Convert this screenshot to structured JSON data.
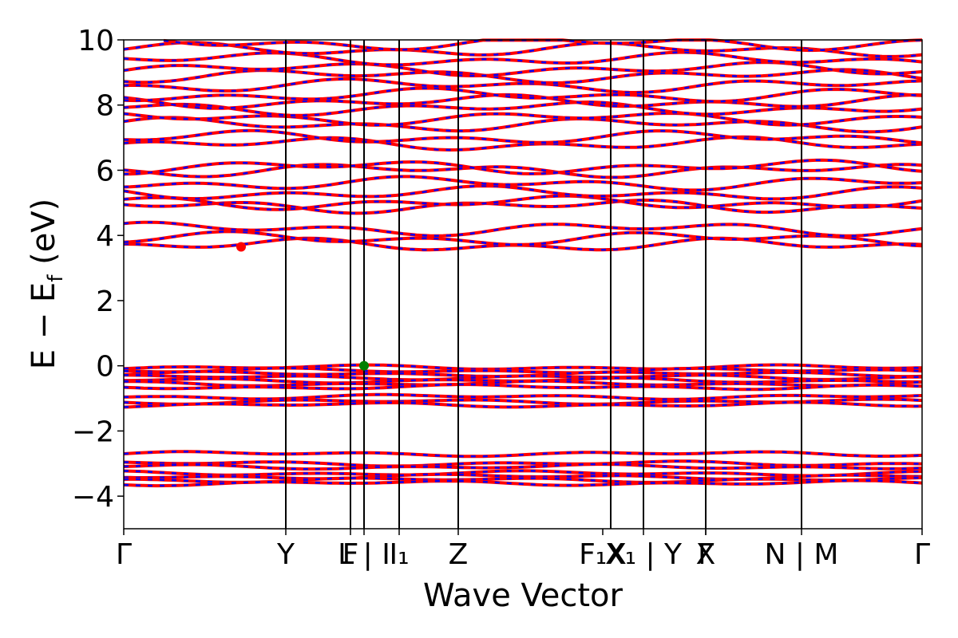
{
  "chart_data": {
    "type": "line",
    "xlabel": "Wave Vector",
    "ylabel": "E − E",
    "ylabel_sub": "f",
    "ylabel_unit": " (eV)",
    "ylim": [
      -5,
      10
    ],
    "yticks": [
      -4,
      -2,
      0,
      2,
      4,
      6,
      8,
      10
    ],
    "ytick_labels": [
      "−4",
      "−2",
      "0",
      "2",
      "4",
      "6",
      "8",
      "10"
    ],
    "kpoints": [
      {
        "label": "Γ",
        "pos": 0.0
      },
      {
        "label": "Y",
        "pos": 0.203
      },
      {
        "label": "F",
        "pos": 0.284
      },
      {
        "label": "L | I",
        "pos": 0.301
      },
      {
        "label": "I₁",
        "pos": 0.345
      },
      {
        "label": "Z",
        "pos": 0.419
      },
      {
        "label": "F₁",
        "pos": 0.6,
        "suffix": "X"
      },
      {
        "label": "X₁ | Y",
        "pos": 0.651
      },
      {
        "label": "X",
        "pos": 0.729
      },
      {
        "label": "Γ",
        "pos": 0.729
      },
      {
        "label": "N | M",
        "pos": 0.849
      },
      {
        "label": "Γ",
        "pos": 1.0
      }
    ],
    "kpoint_vlines": [
      0.203,
      0.284,
      0.301,
      0.345,
      0.419,
      0.61,
      0.651,
      0.729,
      0.849
    ],
    "valence_bands": [
      -0.05,
      -0.15,
      -0.25,
      -0.35,
      -0.45,
      -0.55,
      -0.65,
      -0.95,
      -1.1,
      -1.2
    ],
    "conduction_bands": [
      3.7,
      3.9,
      4.2,
      4.9,
      5.0,
      5.3,
      5.6,
      6.0,
      6.1,
      6.8,
      7.0,
      7.4,
      7.6,
      7.9,
      8.1,
      8.3,
      8.6,
      8.9,
      9.1,
      9.4,
      9.7,
      9.9
    ],
    "core_bands": [
      -2.7,
      -3.0,
      -3.1,
      -3.3,
      -3.4,
      -3.5,
      -3.6
    ],
    "series": [
      {
        "color": "#ff0000"
      },
      {
        "color": "#0000ff"
      }
    ],
    "markers": [
      {
        "x": 0.147,
        "y": 3.65,
        "color": "#ff0000",
        "name": "cbm"
      },
      {
        "x": 0.301,
        "y": 0.0,
        "color": "#008000",
        "name": "vbm"
      }
    ]
  }
}
